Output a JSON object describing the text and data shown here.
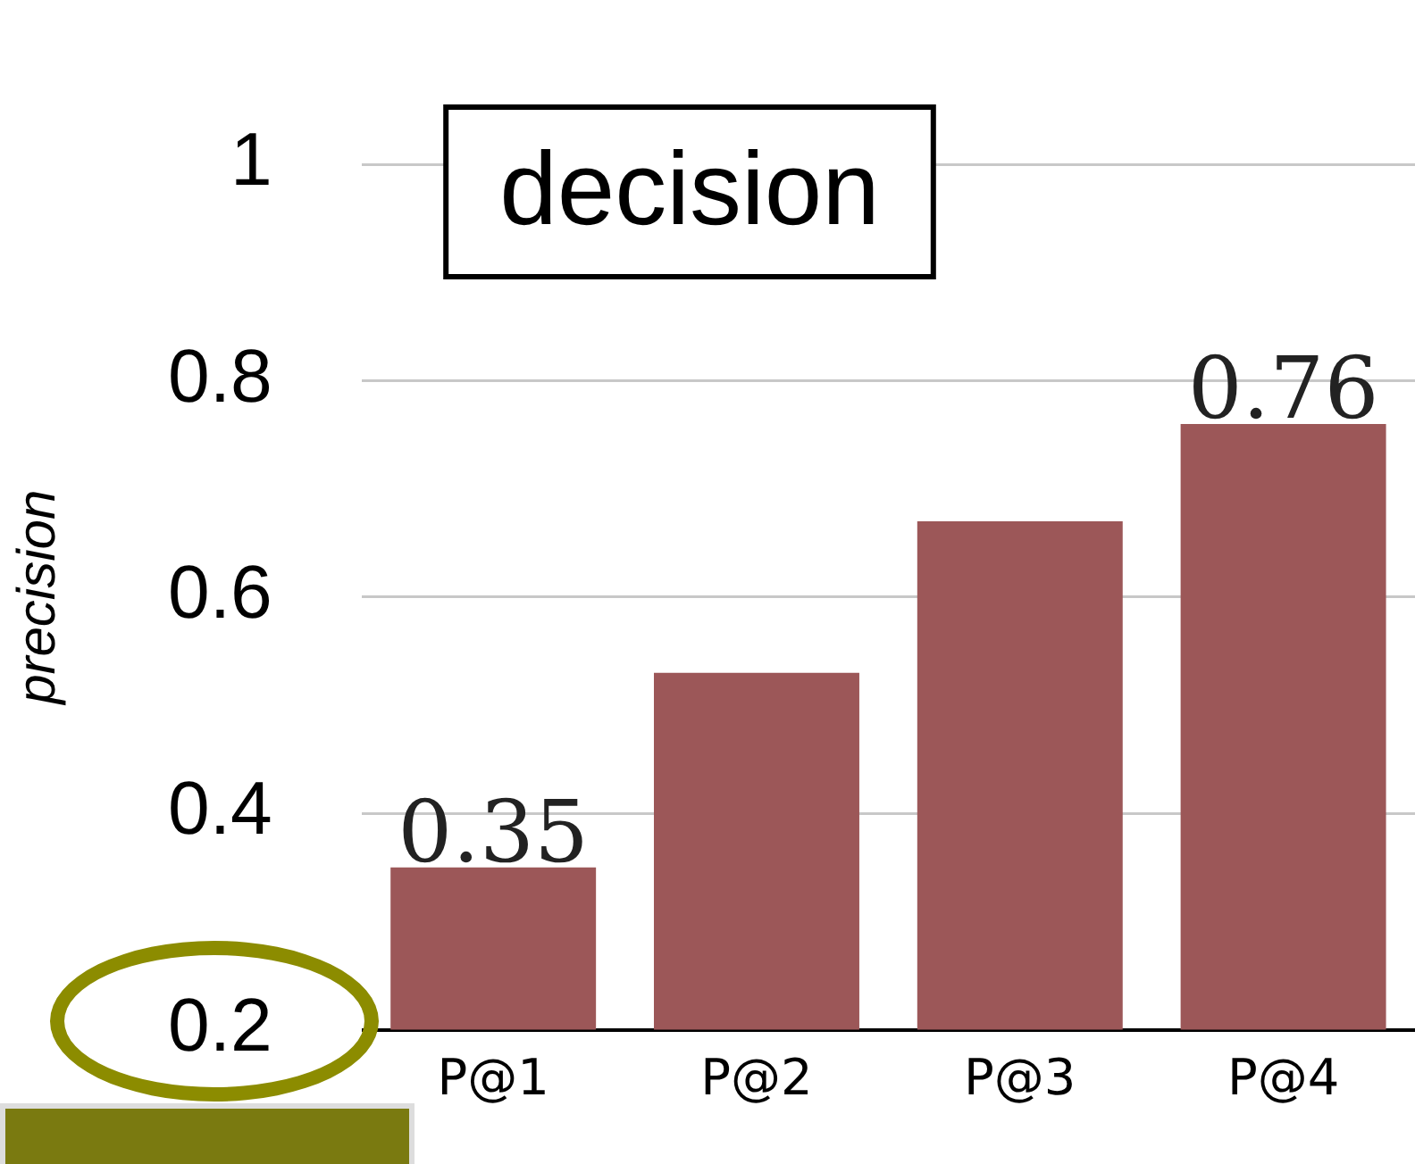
{
  "chart_data": {
    "type": "bar",
    "title": "decision",
    "ylabel": "precision",
    "categories": [
      "P@1",
      "P@2",
      "P@3",
      "P@4"
    ],
    "values": [
      0.35,
      0.53,
      0.67,
      0.76
    ],
    "color": "#9c5758",
    "value_labels": [
      "0.35",
      null,
      null,
      "0.76"
    ],
    "ylim": [
      0.2,
      1
    ],
    "yticks": [
      0.2,
      0.4,
      0.6,
      0.8,
      1
    ],
    "grid": "y",
    "legend": false
  }
}
